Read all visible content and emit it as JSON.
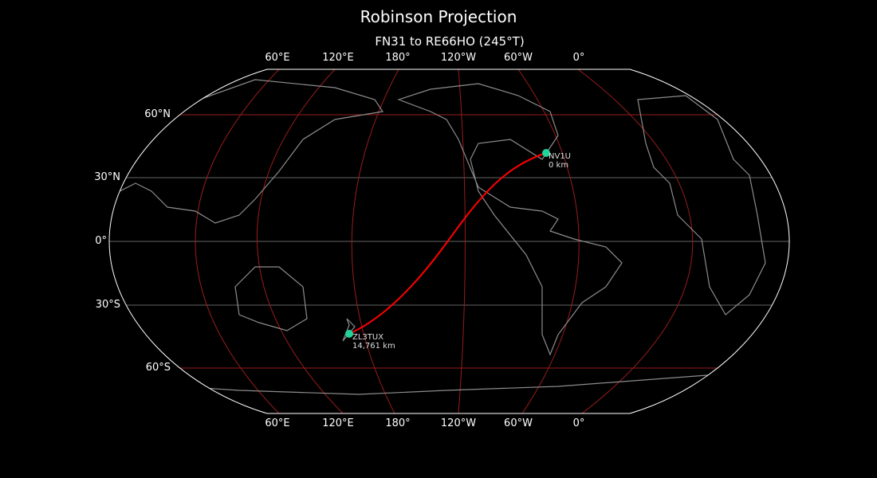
{
  "title": "Robinson Projection",
  "subtitle": "FN31 to RE66HO (245°T)",
  "lon_labels": [
    "60°E",
    "120°E",
    "180°",
    "120°W",
    "60°W",
    "0°"
  ],
  "lat_labels": [
    "60°N",
    "30°N",
    "0°",
    "30°S",
    "60°S"
  ],
  "stations": [
    {
      "call": "NV1U",
      "distance": "0 km",
      "lat": 41.6,
      "lon": -72.7
    },
    {
      "call": "ZL3TUX",
      "distance": "14,761 km",
      "lat": -43.5,
      "lon": 172.6
    }
  ],
  "colors": {
    "path": "#ff0000",
    "marker": "#1fd39a",
    "graticule": "#b22222",
    "coast": "#8c8c8c",
    "outline": "#ffffff"
  }
}
